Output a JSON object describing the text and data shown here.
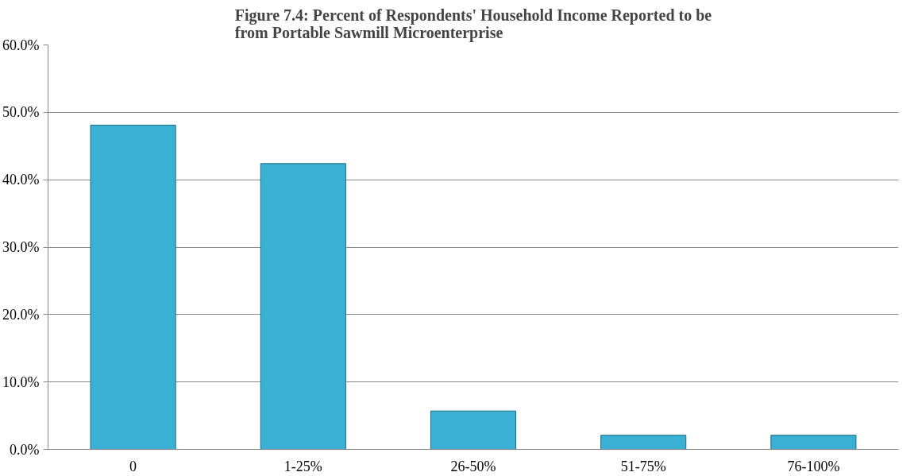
{
  "chart_data": {
    "type": "bar",
    "title": "Figure 7.4: Percent of Respondents' Household Income Reported to be\nfrom  Portable Sawmill Microenterprise",
    "categories": [
      "0",
      "1-25%",
      "26-50%",
      "51-75%",
      "76-100%"
    ],
    "values": [
      48.1,
      42.4,
      5.7,
      2.1,
      2.1
    ],
    "color": "#3ab0d4",
    "ylim": [
      0,
      60
    ],
    "yticks": [
      {
        "value": 0,
        "label": "0.0%"
      },
      {
        "value": 10,
        "label": "10.0%"
      },
      {
        "value": 20,
        "label": "20.0%"
      },
      {
        "value": 30,
        "label": "30.0%"
      },
      {
        "value": 40,
        "label": "40.0%"
      },
      {
        "value": 50,
        "label": "50.0%"
      },
      {
        "value": 60,
        "label": "60.0%"
      }
    ],
    "grid": "y"
  }
}
